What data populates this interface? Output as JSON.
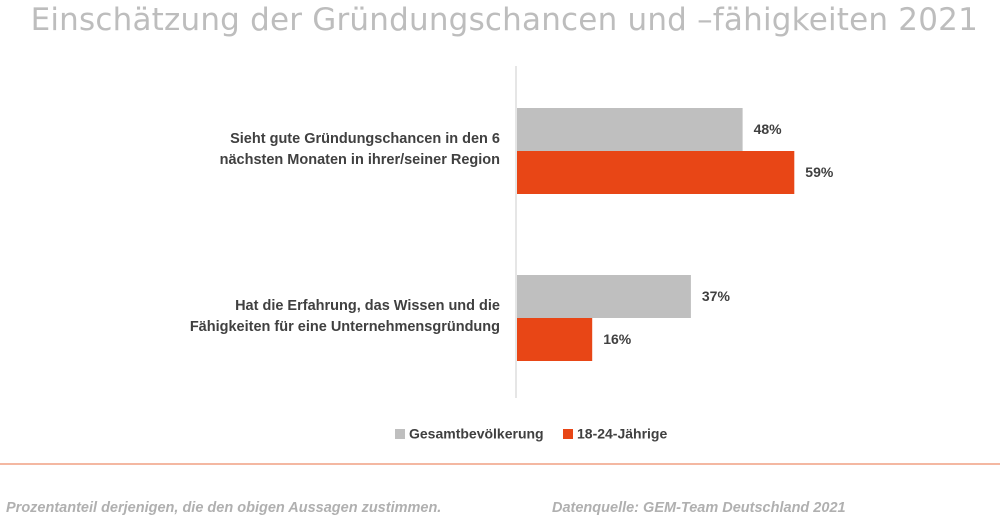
{
  "chart_data": {
    "type": "bar",
    "orientation": "horizontal",
    "title": "Einschätzung der Gründungschancen und –fähigkeiten 2021",
    "categories": [
      [
        "Sieht gute Gründungschancen in den 6",
        "nächsten Monaten in ihrer/seiner Region"
      ],
      [
        "Hat die Erfahrung, das Wissen und die",
        "Fähigkeiten für eine Unternehmensgründung"
      ]
    ],
    "series": [
      {
        "name": "Gesamtbevölkerung",
        "color": "#bfbfbf",
        "values": [
          48,
          37
        ],
        "labels": [
          "48%",
          "37%"
        ]
      },
      {
        "name": "18-24-Jährige",
        "color": "#e84616",
        "values": [
          59,
          16
        ],
        "labels": [
          "59%",
          "16%"
        ]
      }
    ],
    "xlim": [
      0,
      100
    ],
    "grid": false,
    "legend_position": "bottom"
  },
  "footer": {
    "note": "Prozentanteil derjenigen, die den obigen Aussagen zustimmen.",
    "source": "Datenquelle: GEM-Team Deutschland 2021"
  }
}
